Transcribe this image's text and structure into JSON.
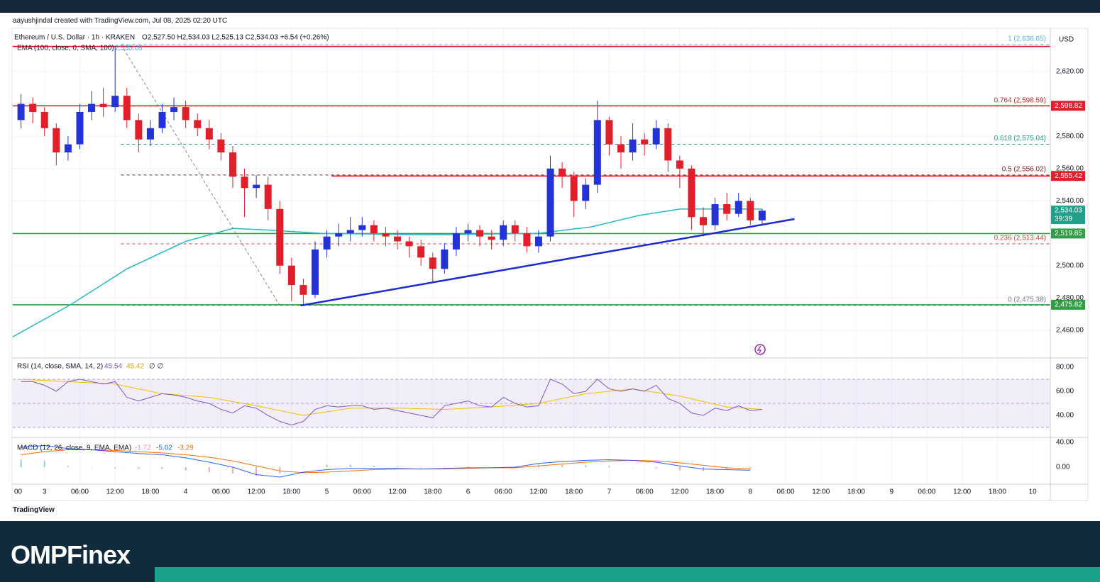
{
  "header": {
    "credit": "aayushjindal created with TradingView.com, Jul 08, 2025 02:20 UTC"
  },
  "chart_data": {
    "type": "candlestick",
    "title": "Ethereum / U.S. Dollar · 1h · KRAKEN",
    "ohlc_legend": "O2,527.50 H2,534.03 L2,525.13 C2,534.03 +6.54 (+0.26%)",
    "currency": "USD",
    "x": [
      -4,
      -2,
      0,
      2,
      4,
      6,
      8,
      10,
      12,
      14,
      16,
      18,
      20,
      22,
      24,
      26,
      28,
      30,
      32,
      34,
      36,
      38,
      40,
      42,
      44,
      46,
      48,
      50,
      52,
      54,
      56,
      58,
      60,
      62,
      64,
      66,
      68,
      70,
      72,
      74,
      76,
      78,
      80,
      82,
      84,
      86,
      88,
      90,
      92,
      94,
      96,
      98,
      100,
      102,
      104,
      106,
      108,
      110,
      112,
      114,
      116,
      118,
      120,
      122
    ],
    "open": [
      2590,
      2600,
      2595,
      2585,
      2570,
      2575,
      2595,
      2600,
      2598,
      2605,
      2590,
      2578,
      2585,
      2595,
      2598,
      2590,
      2585,
      2578,
      2570,
      2555,
      2548,
      2550,
      2535,
      2500,
      2488,
      2482,
      2510,
      2518,
      2520,
      2522,
      2525,
      2520,
      2518,
      2515,
      2512,
      2505,
      2498,
      2510,
      2520,
      2522,
      2518,
      2516,
      2525,
      2520,
      2512,
      2518,
      2560,
      2555,
      2540,
      2550,
      2590,
      2575,
      2570,
      2578,
      2575,
      2585,
      2565,
      2560,
      2530,
      2525,
      2538,
      2532,
      2540,
      2528
    ],
    "high": [
      2606,
      2604,
      2598,
      2588,
      2580,
      2600,
      2608,
      2610,
      2636,
      2610,
      2594,
      2590,
      2600,
      2604,
      2602,
      2594,
      2590,
      2582,
      2574,
      2560,
      2556,
      2555,
      2540,
      2505,
      2492,
      2515,
      2522,
      2526,
      2530,
      2530,
      2528,
      2524,
      2522,
      2518,
      2516,
      2508,
      2514,
      2524,
      2526,
      2525,
      2522,
      2528,
      2528,
      2524,
      2522,
      2568,
      2564,
      2558,
      2554,
      2602,
      2592,
      2580,
      2588,
      2582,
      2590,
      2588,
      2568,
      2562,
      2536,
      2542,
      2545,
      2545,
      2542,
      2535
    ],
    "low": [
      2585,
      2588,
      2580,
      2562,
      2565,
      2572,
      2590,
      2592,
      2595,
      2585,
      2570,
      2574,
      2582,
      2590,
      2585,
      2580,
      2572,
      2565,
      2548,
      2530,
      2542,
      2528,
      2495,
      2478,
      2475,
      2480,
      2505,
      2512,
      2515,
      2518,
      2515,
      2512,
      2510,
      2505,
      2500,
      2490,
      2495,
      2506,
      2515,
      2512,
      2510,
      2512,
      2515,
      2508,
      2508,
      2515,
      2548,
      2530,
      2535,
      2545,
      2568,
      2560,
      2565,
      2568,
      2572,
      2558,
      2548,
      2522,
      2518,
      2522,
      2528,
      2530,
      2525,
      2525
    ],
    "close": [
      2600,
      2595,
      2585,
      2570,
      2575,
      2595,
      2600,
      2598,
      2605,
      2590,
      2578,
      2585,
      2595,
      2598,
      2590,
      2585,
      2578,
      2570,
      2555,
      2548,
      2550,
      2535,
      2500,
      2488,
      2482,
      2510,
      2518,
      2520,
      2522,
      2525,
      2520,
      2518,
      2515,
      2512,
      2505,
      2498,
      2510,
      2520,
      2522,
      2518,
      2516,
      2525,
      2520,
      2512,
      2518,
      2560,
      2555,
      2540,
      2550,
      2590,
      2575,
      2570,
      2578,
      2575,
      2585,
      2565,
      2560,
      2530,
      2525,
      2538,
      2532,
      2540,
      2528,
      2534
    ],
    "up_color": "#2433d6",
    "down_color": "#e01f2a",
    "xlim": [
      -5.4,
      171
    ],
    "xticks": [
      {
        "value": -6,
        "label": "00"
      },
      {
        "value": 0,
        "label": "3"
      },
      {
        "value": 6,
        "label": "06:00"
      },
      {
        "value": 12,
        "label": "12:00"
      },
      {
        "value": 18,
        "label": "18:00"
      },
      {
        "value": 24,
        "label": "4"
      },
      {
        "value": 30,
        "label": "06:00"
      },
      {
        "value": 36,
        "label": "12:00"
      },
      {
        "value": 42,
        "label": "18:00"
      },
      {
        "value": 48,
        "label": "5"
      },
      {
        "value": 54,
        "label": "06:00"
      },
      {
        "value": 60,
        "label": "12:00"
      },
      {
        "value": 66,
        "label": "18:00"
      },
      {
        "value": 72,
        "label": "6"
      },
      {
        "value": 78,
        "label": "06:00"
      },
      {
        "value": 84,
        "label": "12:00"
      },
      {
        "value": 90,
        "label": "18:00"
      },
      {
        "value": 96,
        "label": "7"
      },
      {
        "value": 102,
        "label": "06:00"
      },
      {
        "value": 108,
        "label": "12:00"
      },
      {
        "value": 114,
        "label": "18:00"
      },
      {
        "value": 120,
        "label": "8"
      },
      {
        "value": 126,
        "label": "06:00"
      },
      {
        "value": 132,
        "label": "12:00"
      },
      {
        "value": 138,
        "label": "18:00"
      },
      {
        "value": 144,
        "label": "9"
      },
      {
        "value": 150,
        "label": "06:00"
      },
      {
        "value": 156,
        "label": "12:00"
      },
      {
        "value": 162,
        "label": "18:00"
      },
      {
        "value": 168,
        "label": "10"
      }
    ],
    "ylim": [
      2442.9,
      2646.7
    ],
    "yticks": [
      {
        "value": 2460,
        "label": "2,460.00"
      },
      {
        "value": 2480,
        "label": "2,480.00"
      },
      {
        "value": 2500,
        "label": "2,500.00"
      },
      {
        "value": 2540,
        "label": "2,540.00"
      },
      {
        "value": 2560,
        "label": "2,560.00"
      },
      {
        "value": 2580,
        "label": "2,580.00"
      },
      {
        "value": 2620,
        "label": "2,620.00"
      }
    ],
    "grid": true,
    "ema": {
      "name": "EMA (100, close, 0, SMA, 100)",
      "last_label": "2,535.09",
      "color": "#26b7c9",
      "x": [
        -5.4,
        4.5,
        14,
        24,
        32,
        38,
        47,
        65,
        84,
        93,
        101,
        108,
        122
      ],
      "values": [
        2456,
        2476,
        2498,
        2515,
        2523,
        2522,
        2520,
        2519,
        2520,
        2524,
        2531,
        2535,
        2535
      ]
    },
    "last_price": {
      "value": 2534.03,
      "label": "2,534.03",
      "countdown": "39:39",
      "color": "#22a08a"
    },
    "levels": [
      {
        "value": 2635.5,
        "color": "#e01f2a",
        "from": -5.4
      },
      {
        "value": 2598.82,
        "label": "2,598.82",
        "color": "#e01f2a",
        "from": -5.4
      },
      {
        "value": 2555.42,
        "label": "2,555.42",
        "color": "#e01f2a",
        "from": 48.8
      },
      {
        "value": 2519.85,
        "label": "2,519.85",
        "color": "#2ea043",
        "from": -5.4
      },
      {
        "value": 2475.82,
        "label": "2,475.82",
        "color": "#2ea043",
        "from": -5.4
      }
    ],
    "fib": {
      "anchor_x": [
        13,
        40
      ],
      "anchor_values": [
        2636.65,
        2475.38
      ],
      "levels": [
        {
          "label": "1 (2,636.65)",
          "value": 2636.65,
          "color": "#5ab0d8"
        },
        {
          "label": "0.764 (2,598.59)",
          "value": 2598.59,
          "color": "#c62828"
        },
        {
          "label": "0.618 (2,575.04)",
          "value": 2575.04,
          "color": "#1a9e8a"
        },
        {
          "label": "0.5 (2,556.02)",
          "value": 2556.02,
          "color": "#7a1c1c"
        },
        {
          "label": "0.236 (2,513.44)",
          "value": 2513.44,
          "color": "#e53935"
        },
        {
          "label": "0 (2,475.38)",
          "value": 2475.38,
          "color": "#787b86"
        }
      ]
    },
    "trendline": {
      "x": [
        43.5,
        127.5
      ],
      "values": [
        2475.3,
        2528.8
      ],
      "color": "#1a2ad0"
    },
    "rsi": {
      "name": "RSI (14, close, SMA, 14, 2)",
      "value": 45.54,
      "sma_value": 45.42,
      "extra": "∅ ∅",
      "color": "#7e57c2",
      "sma_color": "#f0c000",
      "ylim": [
        21.8,
        87.6
      ],
      "yticks": [
        {
          "value": 80,
          "label": "80.00"
        },
        {
          "value": 60,
          "label": "60.00"
        },
        {
          "value": 40,
          "label": "40.00"
        }
      ],
      "band": [
        30,
        70
      ],
      "mid": 50,
      "x": [
        -4,
        -2,
        0,
        2,
        4,
        6,
        8,
        10,
        12,
        14,
        16,
        18,
        20,
        22,
        24,
        26,
        28,
        30,
        32,
        34,
        36,
        38,
        40,
        42,
        44,
        46,
        48,
        50,
        52,
        54,
        56,
        58,
        60,
        62,
        64,
        66,
        68,
        70,
        72,
        74,
        76,
        78,
        80,
        82,
        84,
        86,
        88,
        90,
        92,
        94,
        96,
        98,
        100,
        102,
        104,
        106,
        108,
        110,
        112,
        114,
        116,
        118,
        120,
        122
      ],
      "values": [
        68,
        68,
        65,
        60,
        68,
        70,
        68,
        66,
        68,
        55,
        52,
        55,
        58,
        57,
        55,
        52,
        50,
        45,
        42,
        48,
        46,
        40,
        35,
        32,
        35,
        45,
        48,
        47,
        48,
        48,
        45,
        46,
        44,
        42,
        40,
        38,
        48,
        50,
        52,
        48,
        47,
        55,
        50,
        47,
        48,
        70,
        66,
        58,
        60,
        70,
        62,
        60,
        62,
        60,
        65,
        54,
        50,
        42,
        40,
        46,
        44,
        48,
        44,
        45
      ],
      "sma_x": [
        -4,
        4,
        12,
        20,
        28,
        36,
        44,
        52,
        60,
        68,
        76,
        84,
        92,
        100,
        108,
        116,
        122
      ],
      "sma_values": [
        70,
        68,
        66,
        58,
        55,
        48,
        40,
        46,
        46,
        45,
        47,
        50,
        58,
        62,
        56,
        47,
        45
      ]
    },
    "macd": {
      "name": "MACD (12, 26, close, 9, EMA, EMA)",
      "hist_last": -1.72,
      "macd_last": -5.02,
      "signal_last": -3.29,
      "macd_color": "#2962ff",
      "signal_color": "#ff6d00",
      "hist_up": "#26a69a",
      "hist_down": "#ef5350",
      "ylim": [
        -27.4,
        48
      ],
      "yticks": [
        {
          "value": 40,
          "label": "40.00"
        },
        {
          "value": 0,
          "label": "0.00"
        }
      ],
      "x": [
        -4,
        0,
        4,
        8,
        12,
        16,
        20,
        24,
        28,
        32,
        36,
        40,
        44,
        48,
        52,
        56,
        60,
        64,
        68,
        72,
        76,
        80,
        84,
        88,
        92,
        96,
        100,
        104,
        108,
        112,
        116,
        120
      ],
      "macd": [
        32,
        35,
        30,
        28,
        25,
        22,
        20,
        15,
        8,
        0,
        -12,
        -16,
        -8,
        -4,
        -2,
        -2,
        -2,
        -3,
        -2,
        -1,
        -1,
        0,
        6,
        9,
        11,
        12,
        11,
        8,
        2,
        -3,
        -4,
        -5
      ],
      "signal": [
        20,
        25,
        28,
        28,
        27,
        25,
        23,
        20,
        16,
        10,
        2,
        -6,
        -9,
        -8,
        -6,
        -4,
        -3,
        -3,
        -3,
        -2,
        -1,
        -1,
        2,
        5,
        8,
        10,
        11,
        10,
        7,
        3,
        -1,
        -3
      ],
      "hist": [
        12,
        10,
        2,
        0,
        -2,
        -3,
        -3,
        -5,
        -8,
        -10,
        -14,
        -10,
        1,
        4,
        4,
        2,
        1,
        0,
        1,
        1,
        0,
        1,
        4,
        4,
        3,
        2,
        0,
        -2,
        -5,
        -6,
        -3,
        -2
      ]
    }
  },
  "footer": {
    "logo": "TradingView",
    "brand": "OMPFinex"
  }
}
